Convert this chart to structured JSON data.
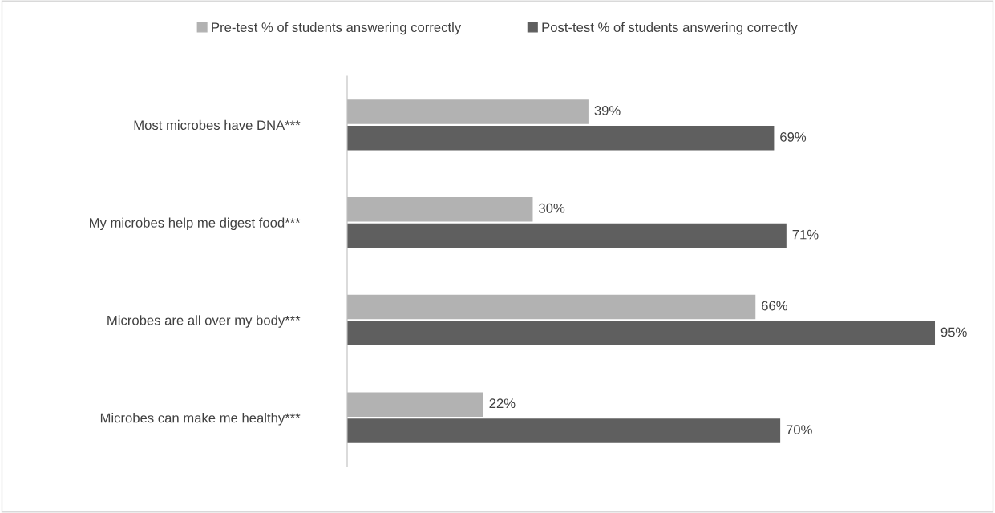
{
  "chart_data": {
    "type": "bar",
    "orientation": "horizontal",
    "categories": [
      "Most microbes have DNA***",
      "My microbes help me digest food***",
      "Microbes are all over my body***",
      "Microbes can make me healthy***"
    ],
    "series": [
      {
        "name": "Pre-test % of students answering correctly",
        "color": "#b2b2b2",
        "values": [
          39,
          30,
          66,
          22
        ],
        "value_labels": [
          "39%",
          "30%",
          "66%",
          "22%"
        ]
      },
      {
        "name": "Post-test % of students answering correctly",
        "color": "#5f5f5f",
        "values": [
          69,
          71,
          95,
          70
        ],
        "value_labels": [
          "69%",
          "71%",
          "95%",
          "70%"
        ]
      }
    ],
    "legend": "top"
  }
}
